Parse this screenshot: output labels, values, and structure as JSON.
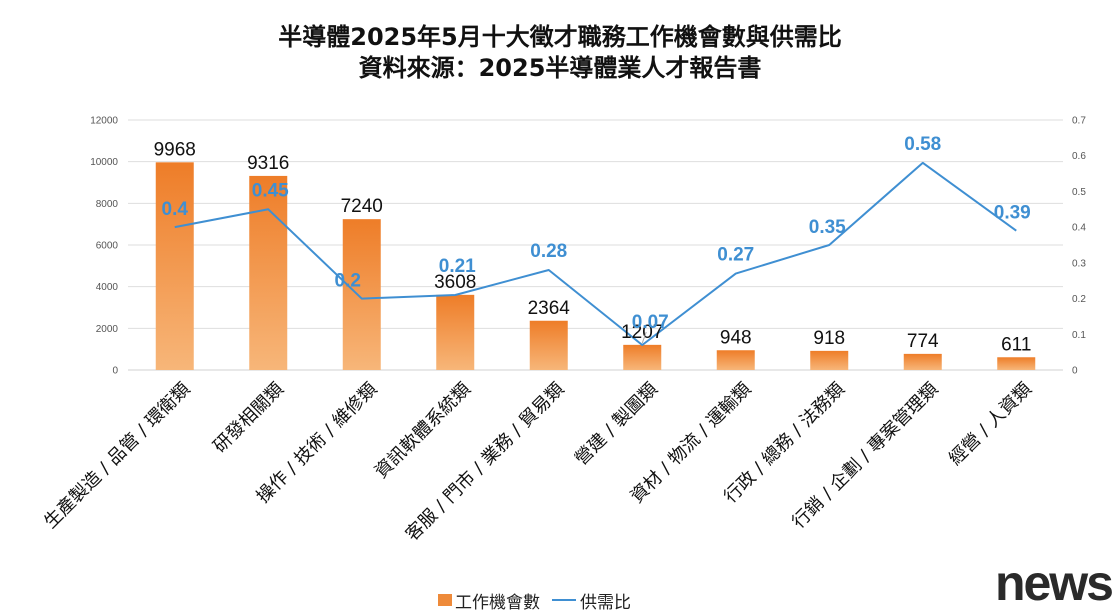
{
  "chart_data": {
    "type": "bar",
    "title": "半導體2025年5月十大徵才職務工作機會數與供需比",
    "subtitle": "資料來源：2025半導體業人才報告書",
    "categories": [
      "生產製造 / 品管 / 環衛類",
      "研發相關類",
      "操作 / 技術 / 維修類",
      "資訊軟體系統類",
      "客服 / 門市 / 業務 / 貿易類",
      "營建 / 製圖類",
      "資材 / 物流 / 運輸類",
      "行政 / 總務 / 法務類",
      "行銷 / 企劃 / 專案管理類",
      "經營 / 人資類"
    ],
    "series": [
      {
        "name": "工作機會數",
        "type": "bar",
        "axis": "left",
        "color": "#ee8a3a",
        "values": [
          9968,
          9316,
          7240,
          3608,
          2364,
          1207,
          948,
          918,
          774,
          611
        ]
      },
      {
        "name": "供需比",
        "type": "line",
        "axis": "right",
        "color": "#3f8fd2",
        "values": [
          0.4,
          0.45,
          0.2,
          0.21,
          0.28,
          0.07,
          0.27,
          0.35,
          0.58,
          0.39
        ]
      }
    ],
    "y_left": {
      "min": 0,
      "max": 12000,
      "ticks": [
        0,
        2000,
        4000,
        6000,
        8000,
        10000,
        12000
      ]
    },
    "y_right": {
      "min": 0,
      "max": 0.7,
      "ticks": [
        "0",
        "0.1",
        "0.2",
        "0.3",
        "0.4",
        "0.5",
        "0.6",
        "0.7"
      ]
    },
    "grid": true,
    "legend": "bottom-center"
  },
  "watermark": "news"
}
